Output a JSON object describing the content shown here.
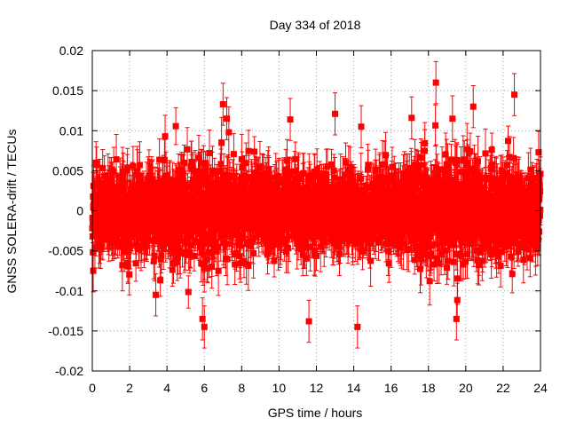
{
  "chart_data": {
    "type": "scatter",
    "title": "Day 334 of 2018",
    "xlabel": "GPS time / hours",
    "ylabel": "GNSS SOLERA-drift / TECUs",
    "xlim": [
      0,
      24
    ],
    "ylim": [
      -0.02,
      0.02
    ],
    "x_ticks": [
      0,
      2,
      4,
      6,
      8,
      10,
      12,
      14,
      16,
      18,
      20,
      22,
      24
    ],
    "y_ticks": [
      -0.02,
      -0.015,
      -0.01,
      -0.005,
      0,
      0.005,
      0.01,
      0.015,
      0.02
    ],
    "x_tick_labels": [
      "0",
      "2",
      "4",
      "6",
      "8",
      "10",
      "12",
      "14",
      "16",
      "18",
      "20",
      "22",
      "24"
    ],
    "y_tick_labels": [
      "-0.02",
      "-0.015",
      "-0.01",
      "-0.005",
      "0",
      "0.005",
      "0.01",
      "0.015",
      "0.02"
    ],
    "grid": true,
    "series": [
      {
        "color": "#ff0000",
        "marker": "square",
        "error_bars": true,
        "sampling_interval_hours": 0.0083,
        "typical_spread": 0.004,
        "typical_error": 0.0025,
        "notable_points": [
          {
            "x": 0.05,
            "y": -0.0075
          },
          {
            "x": 0.2,
            "y": 0.006
          },
          {
            "x": 3.4,
            "y": -0.0105
          },
          {
            "x": 3.9,
            "y": 0.0093
          },
          {
            "x": 5.9,
            "y": -0.0135
          },
          {
            "x": 6.0,
            "y": -0.0145
          },
          {
            "x": 7.0,
            "y": 0.0133
          },
          {
            "x": 7.2,
            "y": 0.0115
          },
          {
            "x": 10.6,
            "y": 0.0114
          },
          {
            "x": 11.6,
            "y": -0.0138
          },
          {
            "x": 13.0,
            "y": 0.0121
          },
          {
            "x": 14.2,
            "y": -0.0145
          },
          {
            "x": 14.4,
            "y": 0.0105
          },
          {
            "x": 17.1,
            "y": 0.0116
          },
          {
            "x": 18.4,
            "y": 0.016
          },
          {
            "x": 19.5,
            "y": -0.0135
          },
          {
            "x": 20.4,
            "y": 0.013
          },
          {
            "x": 22.6,
            "y": 0.0145
          },
          {
            "x": 23.9,
            "y": 0.0073
          }
        ]
      }
    ]
  }
}
